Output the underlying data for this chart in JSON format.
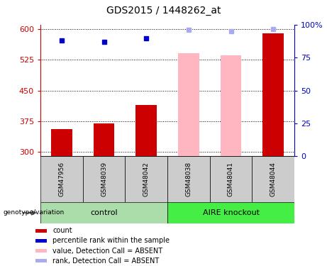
{
  "title": "GDS2015 / 1448262_at",
  "samples": [
    "GSM47956",
    "GSM48039",
    "GSM48042",
    "GSM48038",
    "GSM48041",
    "GSM48044"
  ],
  "count_values": [
    355,
    370,
    415,
    540,
    535,
    590
  ],
  "count_colors": [
    "#CC0000",
    "#CC0000",
    "#CC0000",
    "#FFB6C1",
    "#FFB6C1",
    "#CC0000"
  ],
  "rank_pct": [
    88,
    87,
    90,
    96,
    95,
    97
  ],
  "rank_colors": [
    "#0000CC",
    "#0000CC",
    "#0000CC",
    "#AAAAEE",
    "#AAAAEE",
    "#AAAAEE"
  ],
  "absent_flags": [
    false,
    false,
    false,
    true,
    true,
    false
  ],
  "ylim_left": [
    290,
    610
  ],
  "ylim_right": [
    0,
    100
  ],
  "yticks_left": [
    300,
    375,
    450,
    525,
    600
  ],
  "yticks_right": [
    0,
    25,
    50,
    75,
    100
  ],
  "bar_width": 0.5,
  "control_color": "#AADDAA",
  "knockout_color": "#44EE44",
  "sample_bg_color": "#CCCCCC",
  "left_axis_color": "#CC0000",
  "right_axis_color": "#0000CC",
  "title_fontsize": 10
}
